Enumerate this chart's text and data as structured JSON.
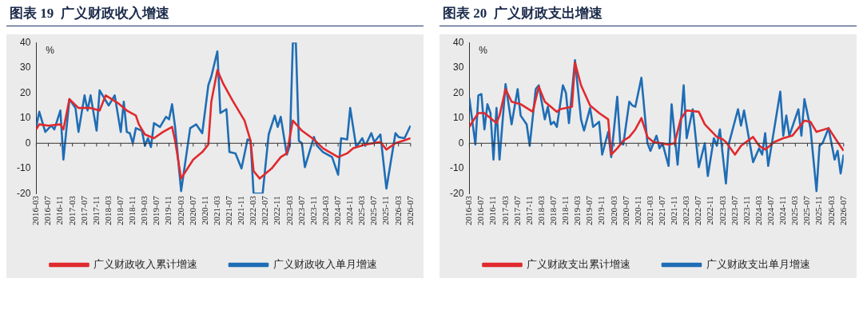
{
  "chart_data": [
    {
      "type": "line",
      "title": "图表 19  广义财政收入增速",
      "ylabel": "%",
      "xlim": [
        "2016-03",
        "2026-07"
      ],
      "ylim": [
        -20,
        40
      ],
      "yticks": [
        -20,
        -10,
        0,
        10,
        20,
        30,
        40
      ],
      "legend": "bottom",
      "xticks": [
        "2016-03",
        "2016-07",
        "2016-11",
        "2017-03",
        "2017-07",
        "2017-11",
        "2018-03",
        "2018-07",
        "2018-11",
        "2019-03",
        "2019-07",
        "2019-11",
        "2020-03",
        "2020-07",
        "2020-11",
        "2021-03",
        "2021-07",
        "2021-11",
        "2022-03",
        "2022-07",
        "2022-11",
        "2023-03",
        "2023-07",
        "2023-11",
        "2024-03",
        "2024-07",
        "2024-11",
        "2025-03",
        "2025-07",
        "2025-11",
        "2026-03",
        "2026-07"
      ],
      "series": [
        {
          "name": "广义财政收入累计增速",
          "color": "#e02a2e",
          "x": [
            "2016-03",
            "2016-04",
            "2016-07",
            "2016-11",
            "2016-12",
            "2017-02",
            "2017-05",
            "2017-09",
            "2017-12",
            "2018-02",
            "2018-06",
            "2018-09",
            "2018-12",
            "2019-01",
            "2019-03",
            "2019-06",
            "2019-09",
            "2019-12",
            "2020-01",
            "2020-03",
            "2020-07",
            "2020-10",
            "2020-12",
            "2021-01",
            "2021-03",
            "2021-05",
            "2021-08",
            "2021-12",
            "2022-02",
            "2022-03",
            "2022-05",
            "2022-09",
            "2022-12",
            "2023-02",
            "2023-04",
            "2023-07",
            "2023-11",
            "2024-02",
            "2024-07",
            "2024-10",
            "2024-12",
            "2025-04",
            "2025-09",
            "2025-11",
            "2026-02",
            "2026-07"
          ],
          "values": [
            5.5,
            7.5,
            7,
            7.5,
            5.5,
            17.5,
            14,
            14,
            13,
            19,
            16,
            13,
            11,
            7.5,
            3.5,
            2,
            4.5,
            6.5,
            1,
            -14,
            -6.5,
            -3.5,
            -0.5,
            16.5,
            29,
            23.5,
            17,
            9,
            1,
            -11,
            -14,
            -10,
            -5.5,
            -4,
            9,
            5,
            1.5,
            -2,
            -5.5,
            -4,
            -2,
            -0.5,
            0.5,
            -2.5,
            0,
            2
          ]
        },
        {
          "name": "广义财政收入单月增速",
          "color": "#1f6db5",
          "x": [
            "2016-03",
            "2016-04",
            "2016-06",
            "2016-08",
            "2016-09",
            "2016-11",
            "2016-12",
            "2017-02",
            "2017-04",
            "2017-05",
            "2017-07",
            "2017-08",
            "2017-09",
            "2017-11",
            "2017-12",
            "2018-03",
            "2018-05",
            "2018-07",
            "2018-08",
            "2018-09",
            "2018-10",
            "2018-11",
            "2018-12",
            "2019-02",
            "2019-03",
            "2019-04",
            "2019-05",
            "2019-06",
            "2019-08",
            "2019-10",
            "2019-11",
            "2019-12",
            "2020-01",
            "2020-03",
            "2020-06",
            "2020-08",
            "2020-10",
            "2020-12",
            "2021-01",
            "2021-03",
            "2021-04",
            "2021-06",
            "2021-07",
            "2021-09",
            "2021-11",
            "2022-01",
            "2022-02",
            "2022-03",
            "2022-06",
            "2022-08",
            "2022-10",
            "2022-11",
            "2022-12",
            "2023-02",
            "2023-03",
            "2023-04",
            "2023-05",
            "2023-06",
            "2023-07",
            "2023-08",
            "2023-11",
            "2023-12",
            "2024-02",
            "2024-05",
            "2024-07",
            "2024-08",
            "2024-10",
            "2024-11",
            "2025-01",
            "2025-03",
            "2025-04",
            "2025-06",
            "2025-07",
            "2025-09",
            "2025-11",
            "2026-02",
            "2026-03",
            "2026-05",
            "2026-07"
          ],
          "values": [
            6.5,
            12.5,
            4.5,
            7,
            5.5,
            13,
            -6.5,
            17.5,
            14,
            4.5,
            19,
            13,
            19,
            5,
            21,
            15,
            19,
            4.5,
            16.5,
            4.5,
            4,
            0,
            6,
            5,
            -1,
            2,
            -1.5,
            8,
            6.5,
            10.5,
            9.5,
            15.5,
            6.5,
            -19,
            6,
            7.5,
            4,
            23,
            26.5,
            36.5,
            12,
            13.5,
            -3.5,
            -4,
            -10,
            1.5,
            1,
            -20,
            -20,
            3.5,
            11,
            6.5,
            10.5,
            -4.5,
            -1,
            40,
            40,
            1,
            0,
            -9.5,
            2.5,
            -1,
            -3.5,
            -5.5,
            -12.5,
            2,
            1.5,
            14,
            -1.5,
            2,
            -1,
            4,
            0.5,
            3.5,
            -18,
            4,
            2.5,
            2,
            7
          ]
        }
      ]
    },
    {
      "type": "line",
      "title": "图表 20  广义财政支出增速",
      "ylabel": "%",
      "xlim": [
        "2016-03",
        "2026-07"
      ],
      "ylim": [
        -20,
        40
      ],
      "yticks": [
        -20,
        -10,
        0,
        10,
        20,
        30,
        40
      ],
      "legend": "bottom",
      "xticks": [
        "2016-03",
        "2016-07",
        "2016-11",
        "2017-03",
        "2017-07",
        "2017-11",
        "2018-03",
        "2018-07",
        "2018-11",
        "2019-03",
        "2019-07",
        "2019-11",
        "2020-03",
        "2020-07",
        "2020-11",
        "2021-03",
        "2021-07",
        "2021-11",
        "2022-03",
        "2022-07",
        "2022-11",
        "2023-03",
        "2023-07",
        "2023-11",
        "2024-03",
        "2024-07",
        "2024-11",
        "2025-03",
        "2025-07",
        "2025-11",
        "2026-03",
        "2026-07"
      ],
      "series": [
        {
          "name": "广义财政支出累计增速",
          "color": "#e02a2e",
          "x": [
            "2016-03",
            "2016-04",
            "2016-06",
            "2016-08",
            "2016-11",
            "2016-12",
            "2017-01",
            "2017-03",
            "2017-05",
            "2017-08",
            "2017-10",
            "2017-12",
            "2018-02",
            "2018-04",
            "2018-08",
            "2018-09",
            "2019-01",
            "2019-02",
            "2019-04",
            "2019-07",
            "2019-10",
            "2020-01",
            "2020-02",
            "2020-04",
            "2020-06",
            "2020-08",
            "2020-10",
            "2020-12",
            "2021-02",
            "2021-04",
            "2021-09",
            "2021-11",
            "2022-01",
            "2022-03",
            "2022-07",
            "2022-09",
            "2023-01",
            "2023-03",
            "2023-04",
            "2023-07",
            "2023-09",
            "2024-01",
            "2024-03",
            "2024-05",
            "2024-08",
            "2024-11",
            "2025-02",
            "2025-06",
            "2025-08",
            "2025-10",
            "2026-02",
            "2026-05",
            "2026-07"
          ],
          "values": [
            6.5,
            8.5,
            12,
            12,
            9,
            8,
            11,
            21.5,
            16.5,
            15.5,
            14,
            12.5,
            22.5,
            16.5,
            12.5,
            13.5,
            14.5,
            32,
            23,
            15,
            12,
            9.5,
            -4.5,
            -2,
            1,
            2.5,
            5.5,
            10,
            2.5,
            0.5,
            -0.5,
            0,
            9.5,
            13,
            12.5,
            7.5,
            2.5,
            1.5,
            0.5,
            -4.5,
            -1,
            2.5,
            -1,
            -2.5,
            0.5,
            2,
            3,
            9,
            8.5,
            4.5,
            6,
            0.5,
            -3
          ]
        },
        {
          "name": "广义财政支出单月增速",
          "color": "#1f6db5",
          "x": [
            "2016-03",
            "2016-05",
            "2016-06",
            "2016-07",
            "2016-08",
            "2016-09",
            "2016-10",
            "2016-11",
            "2016-12",
            "2017-01",
            "2017-03",
            "2017-05",
            "2017-07",
            "2017-08",
            "2017-10",
            "2017-11",
            "2018-01",
            "2018-02",
            "2018-04",
            "2018-05",
            "2018-06",
            "2018-07",
            "2018-08",
            "2018-10",
            "2018-11",
            "2018-12",
            "2019-01",
            "2019-02",
            "2019-04",
            "2019-05",
            "2019-07",
            "2019-08",
            "2019-10",
            "2019-11",
            "2020-01",
            "2020-02",
            "2020-04",
            "2020-05",
            "2020-06",
            "2020-08",
            "2020-09",
            "2020-10",
            "2020-12",
            "2021-02",
            "2021-03",
            "2021-05",
            "2021-06",
            "2021-07",
            "2021-09",
            "2021-10",
            "2021-12",
            "2022-02",
            "2022-03",
            "2022-05",
            "2022-07",
            "2022-09",
            "2022-10",
            "2022-12",
            "2023-01",
            "2023-02",
            "2023-04",
            "2023-05",
            "2023-08",
            "2023-09",
            "2023-10",
            "2024-01",
            "2024-03",
            "2024-04",
            "2024-05",
            "2024-06",
            "2024-10",
            "2024-11",
            "2024-12",
            "2025-01",
            "2025-04",
            "2025-05",
            "2025-06",
            "2025-08",
            "2025-10",
            "2025-11",
            "2025-12",
            "2026-02",
            "2026-04",
            "2026-05",
            "2026-06",
            "2026-07"
          ],
          "values": [
            18,
            -0.5,
            19,
            19.5,
            5.5,
            15.5,
            12,
            -6.5,
            14,
            -6.5,
            23.5,
            7.5,
            21.5,
            11,
            7.5,
            -1,
            21.5,
            23,
            9.5,
            14.5,
            7.5,
            8.5,
            6.5,
            23,
            20,
            8,
            20.5,
            33,
            9.5,
            5,
            14,
            6.5,
            8.5,
            -4.5,
            4.5,
            -5.5,
            18.5,
            0,
            -0.5,
            16.5,
            15,
            14.5,
            26,
            0,
            -3,
            3,
            -2,
            0,
            -9,
            15.5,
            -8.5,
            23,
            2,
            13.5,
            -9.5,
            0,
            -13,
            2,
            -1,
            5.5,
            -16,
            0,
            13.5,
            7,
            13,
            -7.5,
            -2,
            -4.5,
            4,
            -9,
            20.5,
            3,
            11,
            3,
            13.5,
            3,
            17.5,
            6,
            -19,
            -1,
            0,
            6,
            -6.5,
            -3,
            -12,
            -4.5
          ]
        }
      ]
    }
  ]
}
